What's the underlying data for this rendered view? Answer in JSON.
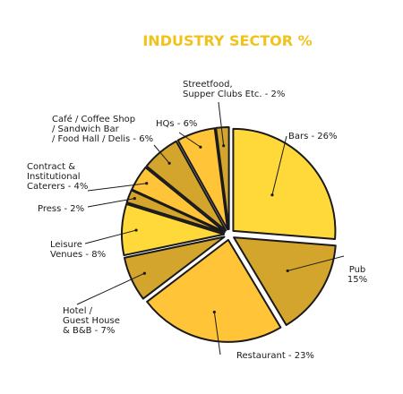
{
  "chart_data": {
    "type": "pie",
    "title": "INDUSTRY SECTOR %",
    "slices": [
      {
        "label": "Bars - 26%",
        "value": 26,
        "color": "#ffd93a"
      },
      {
        "label": "Pub 15%",
        "value": 15,
        "color": "#d4a52c"
      },
      {
        "label": "Restaurant - 23%",
        "value": 23,
        "color": "#ffc437"
      },
      {
        "label": "Hotel / Guest House & B&B - 7%",
        "value": 7,
        "color": "#d4a52c"
      },
      {
        "label": "Leisure Venues - 8%",
        "value": 8,
        "color": "#ffd93a"
      },
      {
        "label": "Press - 2%",
        "value": 2,
        "color": "#d4a52c"
      },
      {
        "label": "Contract & Institutional Caterers - 4%",
        "value": 4,
        "color": "#ffc437"
      },
      {
        "label": "Café / Coffee Shop / Sandwich Bar / Food Hall / Delis - 6%",
        "value": 6,
        "color": "#d4a52c"
      },
      {
        "label": "HQs - 6%",
        "value": 6,
        "color": "#ffc437"
      },
      {
        "label": "Streetfood, Supper Clubs Etc. - 2%",
        "value": 2,
        "color": "#d4a52c"
      }
    ]
  }
}
